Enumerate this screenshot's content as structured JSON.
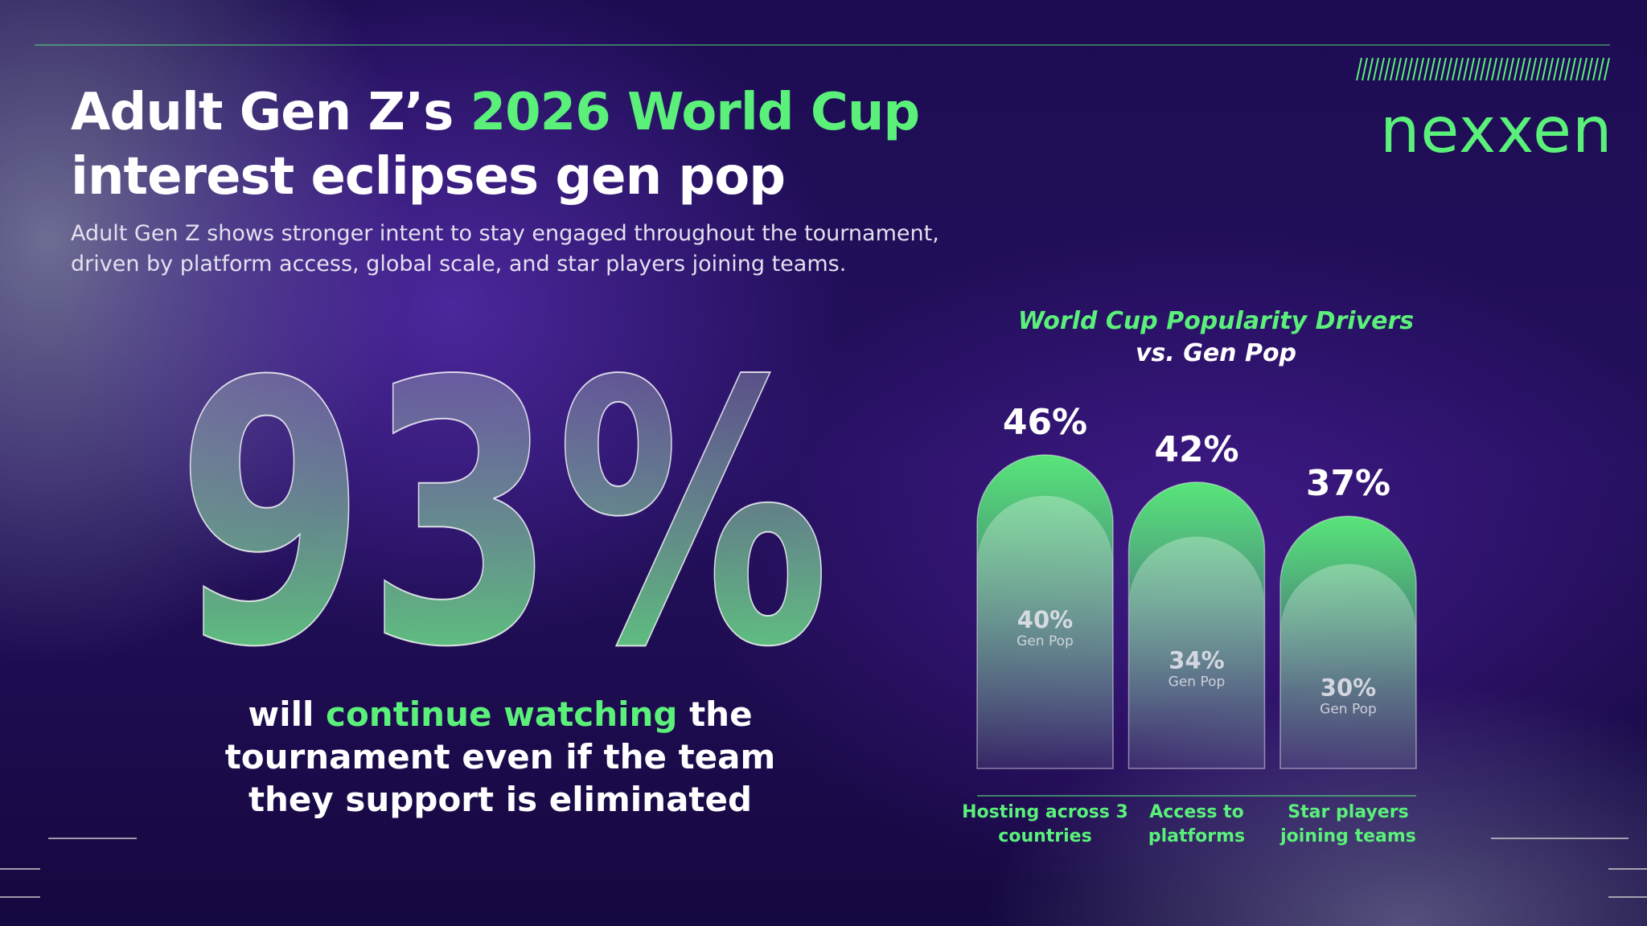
{
  "header": {
    "title": [
      "Adult Gen Z’s ",
      "2026 World Cup",
      "interest eclipses gen pop"
    ],
    "subtitle": [
      "Adult Gen Z shows stronger intent to stay engaged throughout the tournament,",
      "driven by platform access, global scale, and star players joining teams."
    ]
  },
  "brand": "nexxen",
  "stat": {
    "value": "93%",
    "caption": [
      "will ",
      "continue watching",
      " the",
      "tournament even if the team",
      "they support is eliminated"
    ]
  },
  "chart_data": {
    "type": "bar",
    "title": "World Cup Popularity Drivers",
    "subtitle": "vs. Gen Pop",
    "categories": [
      "Hosting across 3 countries",
      "Access to platforms",
      "Star players joining teams"
    ],
    "series": [
      {
        "color": "#5af07a",
        "values": [
          46,
          42,
          37
        ],
        "value_labels": [
          "46%",
          "42%",
          "37%"
        ]
      },
      {
        "name": "Gen Pop",
        "color": "#ffffff",
        "values": [
          40,
          34,
          30
        ],
        "value_labels": [
          "40%",
          "34%",
          "30%"
        ]
      }
    ]
  }
}
